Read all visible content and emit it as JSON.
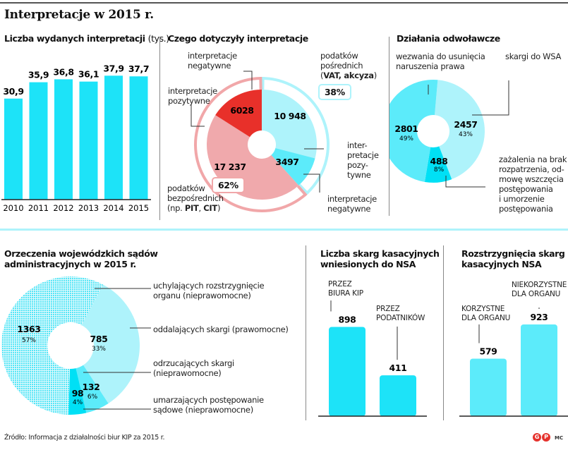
{
  "header": {
    "title": "Interpretacje w 2015 r."
  },
  "colors": {
    "cyan": "#1de3f8",
    "cyan_light": "#aef3fb",
    "cyan_mid": "#5cebfa",
    "cyan_strong": "#00e0f5",
    "red": "#e8302a",
    "pink": "#f0a9ac",
    "pink_outline": "#f1a7a9"
  },
  "panels": {
    "issued": {
      "title": "Liczba wydanych interpretacji",
      "title_unit": "(tys.)"
    },
    "topics": {
      "title": "Czego dotyczyły interpretacje",
      "label_negative_left": [
        "interpretacje",
        "negatywne"
      ],
      "label_positive_left": [
        "interpretacje",
        "pozytywne"
      ],
      "label_indirect": [
        "podatków",
        "pośrednich"
      ],
      "label_indirect_bold": "VAT, akcyza",
      "badge_indirect": "38%",
      "label_direct": [
        "podatków",
        "bezpośrednich"
      ],
      "label_direct_example_prefix": "(np. ",
      "label_direct_pit": "PIT",
      "label_direct_cit": "CIT",
      "label_direct_example_suffix": ")",
      "badge_direct": "62%",
      "label_positive_right": [
        "inter-",
        "pretacje",
        "pozy-",
        "tywne"
      ],
      "label_negative_right": [
        "interpretacje",
        "negatywne"
      ]
    },
    "appeals": {
      "title": "Działania odwoławcze",
      "label_summons": [
        "wezwania do usunięcia",
        "naruszenia prawa"
      ],
      "label_wsa": "skargi do WSA",
      "label_complaints": [
        "zażalenia na brak",
        "rozpatrzenia, od-",
        "mowę wszczęcia",
        "postępowania",
        "i umorzenie",
        "postępowania"
      ]
    },
    "rulings": {
      "title": [
        "Orzeczenia wojewódzkich sądów",
        "administracyjnych w 2015 r."
      ],
      "label_repealing": [
        "uchylających rozstrzygnięcie",
        "organu (nieprawomocne)"
      ],
      "label_dismissing": "oddalających skargi (prawomocne)",
      "label_rejecting": [
        "odrzucających skargi",
        "(nieprawomocne)"
      ],
      "label_discontinuing": [
        "umarzających postępowanie",
        "sądowe (nieprawomocne)"
      ]
    },
    "cassation": {
      "title": [
        "Liczba skarg kasacyjnych",
        "wniesionych do NSA"
      ],
      "label_kip": [
        "PRZEZ",
        "BIURA KIP"
      ],
      "label_taxpayers": [
        "PRZEZ",
        "PODATNIKÓW"
      ]
    },
    "nsa": {
      "title": [
        "Rozstrzygnięcia skarg",
        "kasacyjnych NSA"
      ],
      "label_favorable": [
        "KORZYSTNE",
        "DLA ORGANU"
      ],
      "label_unfavorable": [
        "NIEKORZYSTNE",
        "DLA ORGANU"
      ]
    }
  },
  "footer": {
    "source": "Źródło: Informacja z działalności biur KIP za 2015 r.",
    "logo_left": "G",
    "logo_right": "P",
    "author": "MC"
  },
  "chart_data": [
    {
      "type": "bar",
      "title": "Liczba wydanych interpretacji (tys.)",
      "categories": [
        "2010",
        "2011",
        "2012",
        "2013",
        "2014",
        "2015"
      ],
      "values": [
        30.9,
        35.9,
        36.8,
        36.1,
        37.9,
        37.7
      ],
      "value_labels": [
        "30,9",
        "35,9",
        "36,8",
        "36,1",
        "37,9",
        "37,7"
      ],
      "xlabel": "",
      "ylabel": "",
      "ylim": [
        0,
        40
      ]
    },
    {
      "type": "pie",
      "title": "Czego dotyczyły interpretacje",
      "slices": [
        {
          "name": "podatki pośrednie – interpretacje pozytywne",
          "value": 10948,
          "label": "10 948",
          "group": "indirect"
        },
        {
          "name": "podatki pośrednie – interpretacje negatywne",
          "value": 3497,
          "label": "3497",
          "group": "indirect"
        },
        {
          "name": "podatki bezpośrednie – interpretacje pozytywne",
          "value": 17237,
          "label": "17 237",
          "group": "direct"
        },
        {
          "name": "podatki bezpośrednie – interpretacje negatywne",
          "value": 6028,
          "label": "6028",
          "group": "direct"
        }
      ],
      "groups": [
        {
          "name": "podatków pośrednich (VAT, akcyza)",
          "percent": 38
        },
        {
          "name": "podatków bezpośrednich (np. PIT, CIT)",
          "percent": 62
        }
      ]
    },
    {
      "type": "pie",
      "title": "Działania odwoławcze",
      "slices": [
        {
          "name": "skargi do WSA",
          "value": 2457,
          "label": "2457",
          "percent": "43%"
        },
        {
          "name": "zażalenia na brak rozpatrzenia, odmowę wszczęcia postępowania i umorzenie postępowania",
          "value": 488,
          "label": "488",
          "percent": "8%"
        },
        {
          "name": "wezwania do usunięcia naruszenia prawa",
          "value": 2801,
          "label": "2801",
          "percent": "49%"
        }
      ]
    },
    {
      "type": "pie",
      "title": "Orzeczenia wojewódzkich sądów administracyjnych w 2015 r.",
      "slices": [
        {
          "name": "oddalających skargi (prawomocne)",
          "value": 785,
          "label": "785",
          "percent": "33%"
        },
        {
          "name": "odrzucających skargi (nieprawomocne)",
          "value": 132,
          "label": "132",
          "percent": "6%"
        },
        {
          "name": "umarzających postępowanie sądowe (nieprawomocne)",
          "value": 98,
          "label": "98",
          "percent": "4%"
        },
        {
          "name": "uchylających rozstrzygnięcie organu (nieprawomocne)",
          "value": 1363,
          "label": "1363",
          "percent": "57%"
        }
      ]
    },
    {
      "type": "bar",
      "title": "Liczba skarg kasacyjnych wniesionych do NSA",
      "categories": [
        "PRZEZ BIURA KIP",
        "PRZEZ PODATNIKÓW"
      ],
      "values": [
        898,
        411
      ],
      "value_labels": [
        "898",
        "411"
      ],
      "ylim": [
        0,
        1000
      ]
    },
    {
      "type": "bar",
      "title": "Rozstrzygnięcia skarg kasacyjnych NSA",
      "categories": [
        "KORZYSTNE DLA ORGANU",
        "NIEKORZYSTNE DLA ORGANU"
      ],
      "values": [
        579,
        923
      ],
      "value_labels": [
        "579",
        "923"
      ],
      "ylim": [
        0,
        1000
      ]
    }
  ]
}
